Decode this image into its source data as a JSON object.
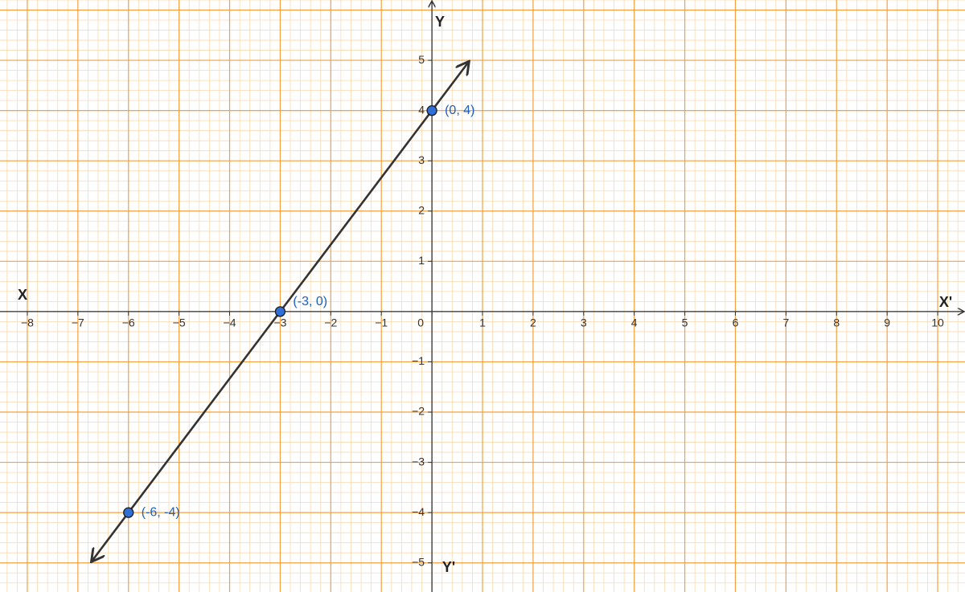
{
  "chart_data": {
    "type": "line",
    "axis_labels": {
      "x_negative": "X",
      "x_positive": "X'",
      "y_positive": "Y",
      "y_negative": "Y'"
    },
    "x": [
      -6,
      -3,
      0
    ],
    "series": [
      {
        "color": "#333333",
        "marker_color": "#2f6fd6",
        "label_color": "#1f5fbf",
        "values": [
          -4,
          0,
          4
        ],
        "value_labels": [
          "(-6, -4)",
          "(-3, 0)",
          "(0, 4)"
        ]
      }
    ],
    "xlim": [
      -8.54,
      10.54
    ],
    "ylim": [
      -5.58,
      6.2
    ],
    "xticks": [
      {
        "value": -8,
        "label": "−8"
      },
      {
        "value": -7,
        "label": "−7"
      },
      {
        "value": -6,
        "label": "−6"
      },
      {
        "value": -5,
        "label": "−5"
      },
      {
        "value": -4,
        "label": "−4"
      },
      {
        "value": -3,
        "label": "−3"
      },
      {
        "value": -2,
        "label": "−2"
      },
      {
        "value": -1,
        "label": "−1"
      },
      0,
      1,
      2,
      3,
      4,
      5,
      6,
      7,
      8,
      9,
      10
    ],
    "yticks": [
      {
        "value": -5,
        "label": "−5"
      },
      {
        "value": -4,
        "label": "−4"
      },
      {
        "value": -3,
        "label": "−3"
      },
      {
        "value": -2,
        "label": "−2"
      },
      {
        "value": -1,
        "label": "−1"
      },
      1,
      2,
      3,
      4,
      5
    ],
    "grid": true,
    "grid_color": "#f5a040",
    "minor_grid_color": "#fbd9b0",
    "minor_divisions": 5
  }
}
